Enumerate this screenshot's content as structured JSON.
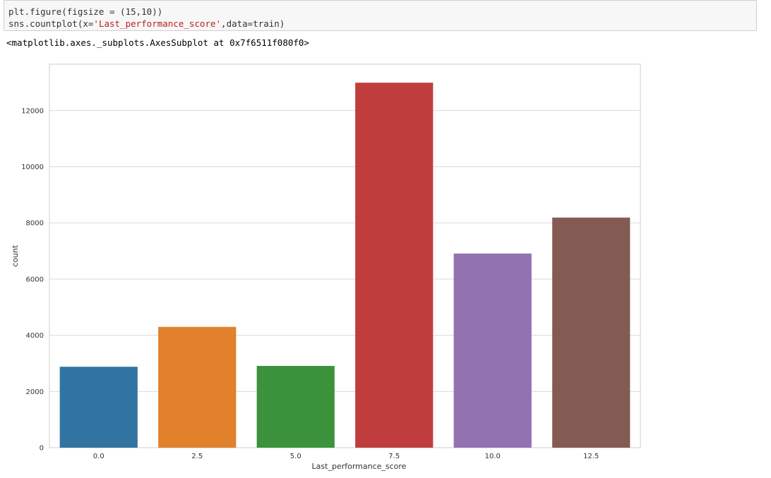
{
  "code_cell": {
    "line1": {
      "a": "plt.figure(figsize = (15,10))"
    },
    "line2": {
      "prefix": "sns.countplot(x=",
      "string": "'Last_performance_score'",
      "suffix": ",data=train)"
    }
  },
  "output": {
    "text": "<matplotlib.axes._subplots.AxesSubplot at 0x7f6511f080f0>"
  },
  "chart_data": {
    "type": "bar",
    "xlabel": "Last_performance_score",
    "ylabel": "count",
    "categories": [
      "0.0",
      "2.5",
      "5.0",
      "7.5",
      "10.0",
      "12.5"
    ],
    "values": [
      2880,
      4300,
      2910,
      12990,
      6910,
      8190
    ],
    "colors": [
      "#3274a1",
      "#e1812c",
      "#3a923a",
      "#c03d3e",
      "#9372b2",
      "#845b53"
    ],
    "ylim": [
      0,
      13650
    ],
    "yticks": [
      0,
      2000,
      4000,
      6000,
      8000,
      10000,
      12000
    ],
    "grid": true
  }
}
